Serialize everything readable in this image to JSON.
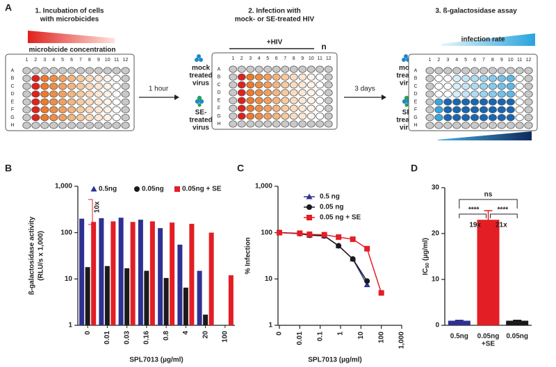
{
  "diagram": {
    "panel": "A",
    "steps": [
      {
        "title": [
          "1. Incubation of cells",
          "with microbicides"
        ],
        "gradient_label": "microbicide concentration"
      },
      {
        "title": [
          "2. Infection with",
          "mock- or SE-treated HIV"
        ],
        "label": "+HIV",
        "n": "n"
      },
      {
        "title": [
          "3. ß-galactosidase assay"
        ],
        "gradient_label": "infection rate"
      }
    ],
    "arrows": [
      "1 hour",
      "3 days"
    ],
    "virus_labels": [
      [
        "mock",
        "treated",
        "virus"
      ],
      [
        "SE-",
        "treated",
        "virus"
      ]
    ],
    "plate_rows": [
      "A",
      "B",
      "C",
      "D",
      "E",
      "F",
      "G",
      "H"
    ],
    "plate_cols": [
      "1",
      "2",
      "3",
      "4",
      "5",
      "6",
      "7",
      "8",
      "9",
      "10",
      "11",
      "12"
    ]
  },
  "chart_data": [
    {
      "panel": "B",
      "type": "bar",
      "log_y": true,
      "y_label": [
        "ß-galactosidase activity",
        "(RLU/s x 1,000)"
      ],
      "x_label": "SPL7013 (µg/ml)",
      "categories": [
        "0",
        "0.01",
        "0.03",
        "0.16",
        "0.8",
        "4",
        "20",
        "100"
      ],
      "series": [
        {
          "name": "0.5ng",
          "color": "#2e3192",
          "marker": "triangle",
          "values": [
            200,
            205,
            210,
            190,
            125,
            55,
            15,
            null
          ]
        },
        {
          "name": "0.05ng",
          "color": "#1a1a1a",
          "marker": "circle",
          "values": [
            18,
            19,
            17,
            15,
            10.5,
            6.5,
            1.7,
            null
          ]
        },
        {
          "name": "0.05ng + SE",
          "color": "#e31e24",
          "marker": "square",
          "values": [
            170,
            175,
            170,
            175,
            165,
            155,
            100,
            12
          ]
        }
      ],
      "ylim": [
        1,
        1000
      ],
      "yticks": [
        1,
        10,
        100,
        {
          "value": 1000,
          "label": "1,000"
        }
      ],
      "annotation": "10x"
    },
    {
      "panel": "C",
      "type": "line",
      "log_x": true,
      "log_y": true,
      "y_label": "% Infection",
      "x_label": "SPL7013 (µg/ml)",
      "x": [
        0,
        0.01,
        0.03,
        0.16,
        0.8,
        4,
        20,
        100
      ],
      "series": [
        {
          "name": "0.5 ng",
          "color": "#2e3192",
          "marker": "triangle",
          "values": [
            100,
            95,
            88,
            85,
            52,
            27,
            7.5,
            null
          ]
        },
        {
          "name": "0.05 ng",
          "color": "#1a1a1a",
          "marker": "circle",
          "values": [
            100,
            95,
            88,
            85,
            52,
            27,
            9,
            null
          ]
        },
        {
          "name": "0.05 ng + SE",
          "color": "#e31e24",
          "marker": "square",
          "values": [
            100,
            97,
            92,
            90,
            80,
            72,
            45,
            5
          ]
        }
      ],
      "xlim": [
        0.001,
        1000
      ],
      "xticks": [
        0,
        0.01,
        0.1,
        1,
        10,
        100,
        {
          "value": 1000,
          "label": "1,000"
        }
      ],
      "ylim": [
        1,
        1000
      ],
      "yticks": [
        1,
        10,
        100,
        {
          "value": 1000,
          "label": "1,000"
        }
      ]
    },
    {
      "panel": "D",
      "type": "bar",
      "y_label": [
        "IC",
        "50",
        "(µg/ml)"
      ],
      "categories": [
        [
          "0.5ng"
        ],
        [
          "0.05ng",
          "+SE"
        ],
        [
          "0.05ng"
        ]
      ],
      "colors": [
        "#2e3192",
        "#e31e24",
        "#1a1a1a"
      ],
      "values": [
        1.0,
        23,
        1.0
      ],
      "errors": [
        0.1,
        2,
        0.1
      ],
      "ylim": [
        0,
        30
      ],
      "yticks": [
        0,
        10,
        20,
        30
      ],
      "annotations": [
        "ns",
        "****",
        "****",
        "19x",
        "21x"
      ]
    }
  ]
}
